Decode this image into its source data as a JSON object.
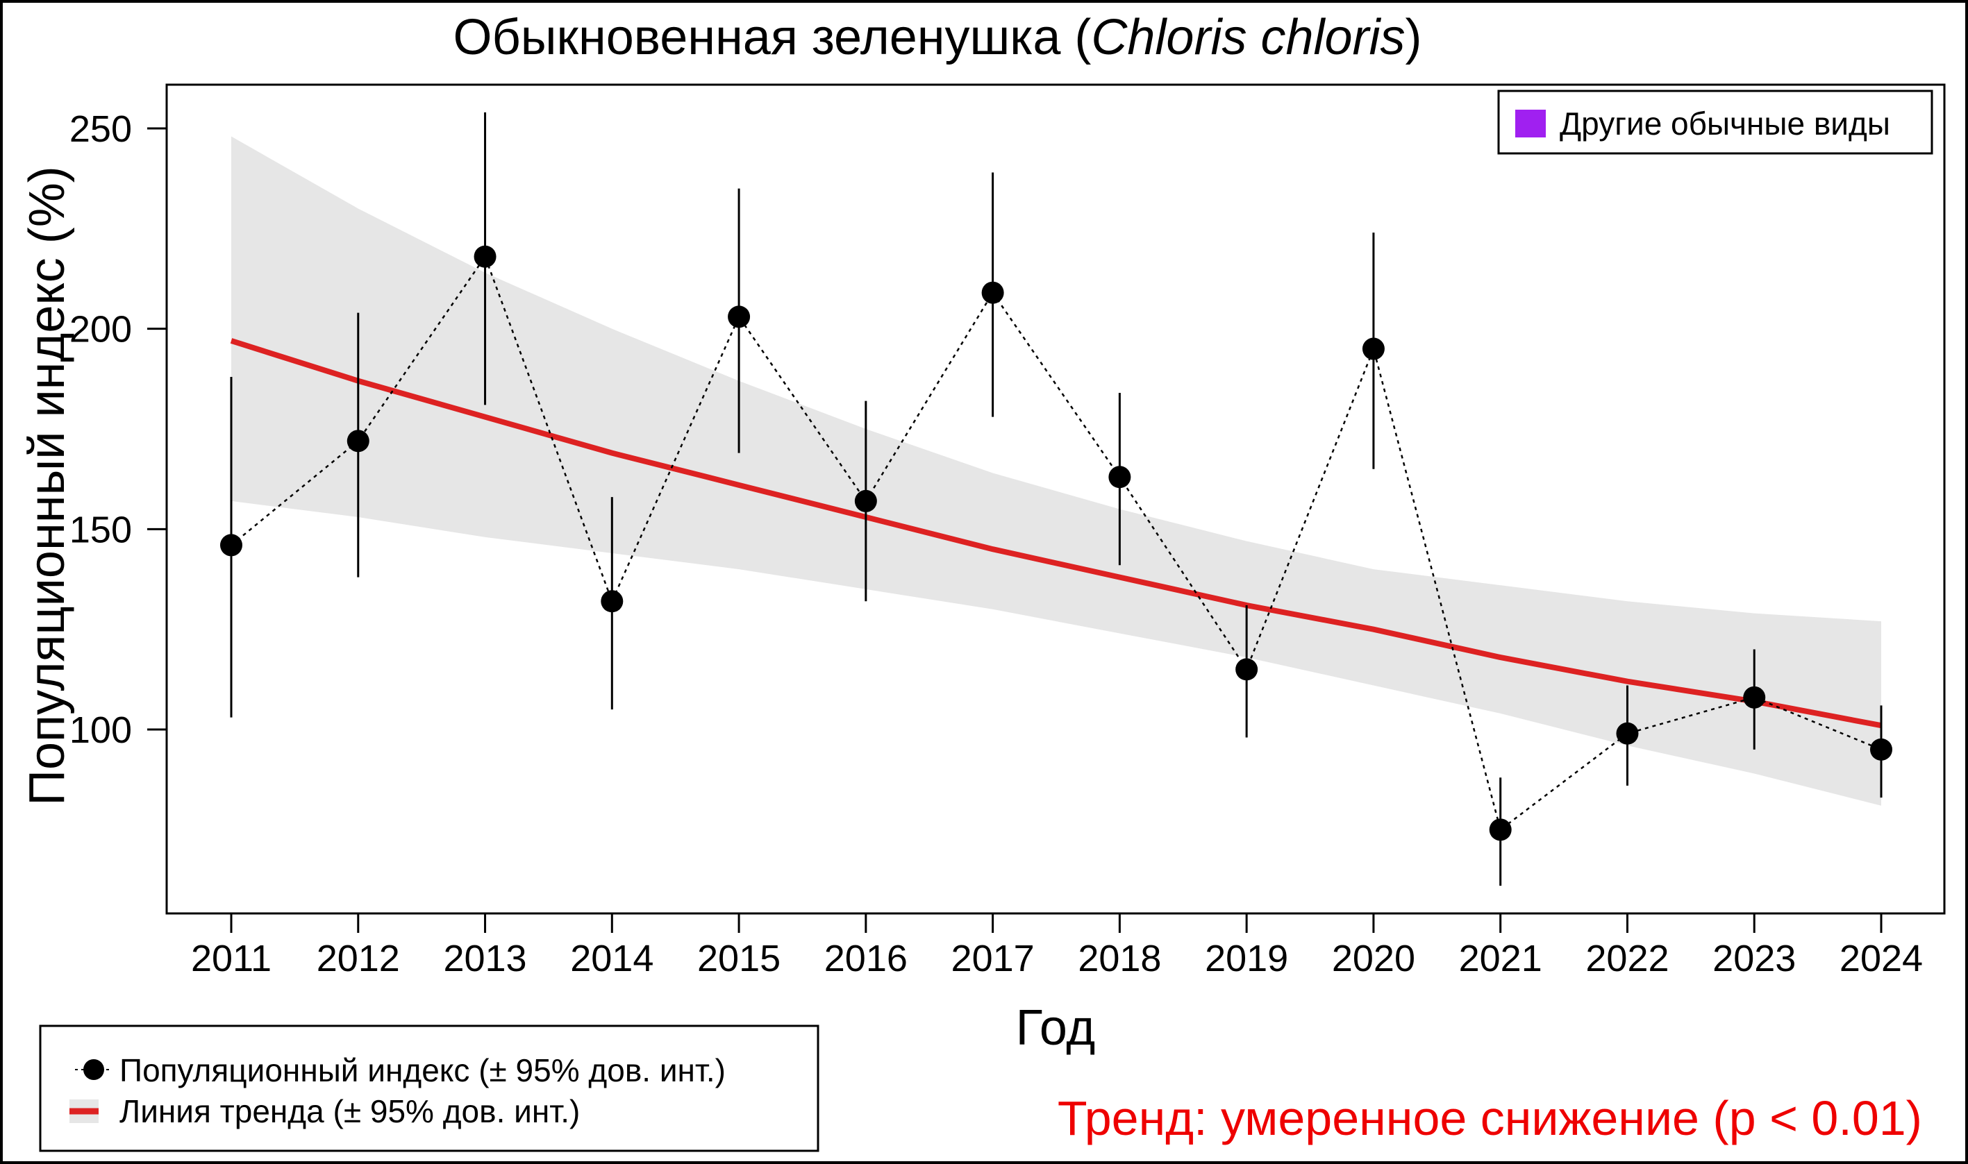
{
  "chart_data": {
    "type": "line",
    "title": "Обыкновенная зеленушка (Chloris chloris)",
    "title_parts": {
      "prefix": "Обыкновенная зеленушка (",
      "species_latin": "Chloris chloris",
      "suffix": ")"
    },
    "xlabel": "Год",
    "ylabel": "Популяционный индекс (%)",
    "ylim": [
      55,
      265
    ],
    "xlim": [
      2011,
      2024
    ],
    "y_ticks": [
      100,
      150,
      200,
      250
    ],
    "x": [
      2011,
      2012,
      2013,
      2014,
      2015,
      2016,
      2017,
      2018,
      2019,
      2020,
      2021,
      2022,
      2023,
      2024
    ],
    "series": [
      {
        "name": "Популяционный индекс (± 95% дов. инт.)",
        "type": "points_with_errorbars",
        "color": "#000000",
        "values": [
          146,
          172,
          218,
          132,
          203,
          157,
          209,
          163,
          115,
          195,
          75,
          99,
          108,
          95
        ],
        "lower": [
          103,
          138,
          181,
          105,
          169,
          132,
          178,
          141,
          98,
          165,
          61,
          86,
          95,
          83
        ],
        "upper": [
          188,
          204,
          254,
          158,
          235,
          182,
          239,
          184,
          131,
          224,
          88,
          111,
          120,
          106
        ]
      },
      {
        "name": "Линия тренда (± 95% дов. инт.)",
        "type": "trend",
        "color": "#dd2222",
        "band_color": "#e6e6e6",
        "values": [
          197,
          187,
          178,
          169,
          161,
          153,
          145,
          138,
          131,
          125,
          118,
          112,
          107,
          101
        ],
        "band_lower": [
          157,
          153,
          148,
          144,
          140,
          135,
          130,
          124,
          118,
          111,
          104,
          96,
          89,
          81
        ],
        "band_upper": [
          248,
          230,
          214,
          200,
          187,
          175,
          164,
          155,
          147,
          140,
          136,
          132,
          129,
          127
        ]
      }
    ],
    "legend_top_right": {
      "label": "Другие обычные виды",
      "color": "#a020f0"
    },
    "legend_bottom_left": [
      "Популяционный индекс (± 95% дов. инт.)",
      "Линия тренда (± 95% дов. инт.)"
    ],
    "trend_annotation": {
      "text": "Тренд: умеренное снижение (p < 0.01)",
      "color": "#ee0000"
    },
    "grid": false
  }
}
